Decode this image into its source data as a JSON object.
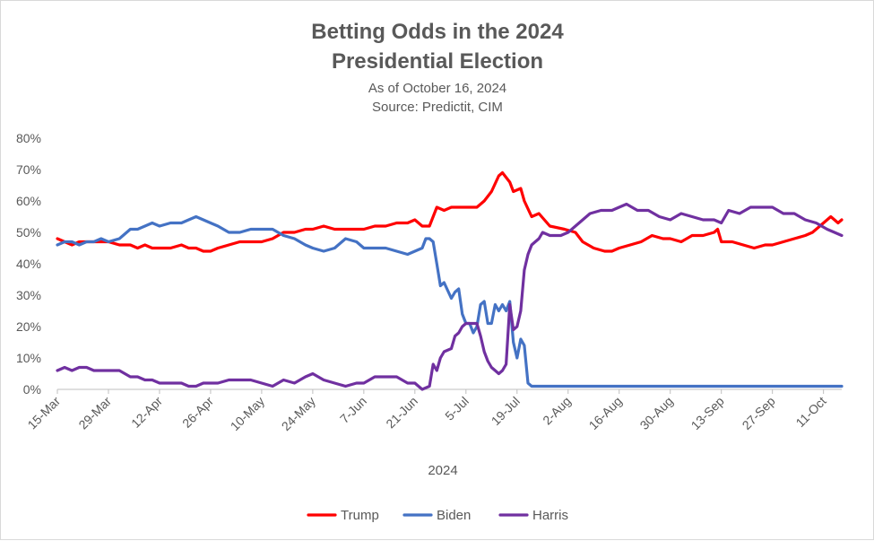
{
  "chart_data": {
    "type": "line",
    "title_lines": [
      "Betting Odds in the 2024",
      "Presidential Election"
    ],
    "subtitle_lines": [
      "As of October 16, 2024",
      "Source: Predictit, CIM"
    ],
    "xlabel": "2024",
    "ylabel": "",
    "ylim": [
      0,
      80
    ],
    "y_ticks": [
      "0%",
      "10%",
      "20%",
      "30%",
      "40%",
      "50%",
      "60%",
      "70%",
      "80%"
    ],
    "x_range": [
      "2024-03-15",
      "2024-10-16"
    ],
    "x_tick_labels": [
      "15-Mar",
      "29-Mar",
      "12-Apr",
      "26-Apr",
      "10-May",
      "24-May",
      "7-Jun",
      "21-Jun",
      "5-Jul",
      "19-Jul",
      "2-Aug",
      "16-Aug",
      "30-Aug",
      "13-Sep",
      "27-Sep",
      "11-Oct"
    ],
    "x_tick_dates": [
      "2024-03-15",
      "2024-03-29",
      "2024-04-12",
      "2024-04-26",
      "2024-05-10",
      "2024-05-24",
      "2024-06-07",
      "2024-06-21",
      "2024-07-05",
      "2024-07-19",
      "2024-08-02",
      "2024-08-16",
      "2024-08-30",
      "2024-09-13",
      "2024-09-27",
      "2024-10-11"
    ],
    "grid": false,
    "legend_position": "bottom",
    "series": [
      {
        "name": "Trump",
        "color": "#FF0000",
        "points": [
          [
            "2024-03-15",
            48
          ],
          [
            "2024-03-17",
            47
          ],
          [
            "2024-03-19",
            46
          ],
          [
            "2024-03-21",
            47
          ],
          [
            "2024-03-23",
            47
          ],
          [
            "2024-03-25",
            47
          ],
          [
            "2024-03-27",
            47
          ],
          [
            "2024-03-29",
            47
          ],
          [
            "2024-04-01",
            46
          ],
          [
            "2024-04-04",
            46
          ],
          [
            "2024-04-06",
            45
          ],
          [
            "2024-04-08",
            46
          ],
          [
            "2024-04-10",
            45
          ],
          [
            "2024-04-12",
            45
          ],
          [
            "2024-04-15",
            45
          ],
          [
            "2024-04-18",
            46
          ],
          [
            "2024-04-20",
            45
          ],
          [
            "2024-04-22",
            45
          ],
          [
            "2024-04-24",
            44
          ],
          [
            "2024-04-26",
            44
          ],
          [
            "2024-04-28",
            45
          ],
          [
            "2024-05-01",
            46
          ],
          [
            "2024-05-04",
            47
          ],
          [
            "2024-05-07",
            47
          ],
          [
            "2024-05-10",
            47
          ],
          [
            "2024-05-13",
            48
          ],
          [
            "2024-05-16",
            50
          ],
          [
            "2024-05-19",
            50
          ],
          [
            "2024-05-22",
            51
          ],
          [
            "2024-05-24",
            51
          ],
          [
            "2024-05-27",
            52
          ],
          [
            "2024-05-30",
            51
          ],
          [
            "2024-06-02",
            51
          ],
          [
            "2024-06-05",
            51
          ],
          [
            "2024-06-07",
            51
          ],
          [
            "2024-06-10",
            52
          ],
          [
            "2024-06-13",
            52
          ],
          [
            "2024-06-16",
            53
          ],
          [
            "2024-06-19",
            53
          ],
          [
            "2024-06-21",
            54
          ],
          [
            "2024-06-23",
            52
          ],
          [
            "2024-06-25",
            52
          ],
          [
            "2024-06-27",
            58
          ],
          [
            "2024-06-29",
            57
          ],
          [
            "2024-07-01",
            58
          ],
          [
            "2024-07-03",
            58
          ],
          [
            "2024-07-05",
            58
          ],
          [
            "2024-07-08",
            58
          ],
          [
            "2024-07-10",
            60
          ],
          [
            "2024-07-12",
            63
          ],
          [
            "2024-07-14",
            68
          ],
          [
            "2024-07-15",
            69
          ],
          [
            "2024-07-17",
            66
          ],
          [
            "2024-07-18",
            63
          ],
          [
            "2024-07-20",
            64
          ],
          [
            "2024-07-21",
            60
          ],
          [
            "2024-07-23",
            55
          ],
          [
            "2024-07-25",
            56
          ],
          [
            "2024-07-28",
            52
          ],
          [
            "2024-08-01",
            51
          ],
          [
            "2024-08-04",
            50
          ],
          [
            "2024-08-06",
            47
          ],
          [
            "2024-08-09",
            45
          ],
          [
            "2024-08-12",
            44
          ],
          [
            "2024-08-14",
            44
          ],
          [
            "2024-08-16",
            45
          ],
          [
            "2024-08-19",
            46
          ],
          [
            "2024-08-22",
            47
          ],
          [
            "2024-08-25",
            49
          ],
          [
            "2024-08-28",
            48
          ],
          [
            "2024-08-30",
            48
          ],
          [
            "2024-09-02",
            47
          ],
          [
            "2024-09-05",
            49
          ],
          [
            "2024-09-08",
            49
          ],
          [
            "2024-09-11",
            50
          ],
          [
            "2024-09-12",
            51
          ],
          [
            "2024-09-13",
            47
          ],
          [
            "2024-09-16",
            47
          ],
          [
            "2024-09-19",
            46
          ],
          [
            "2024-09-22",
            45
          ],
          [
            "2024-09-25",
            46
          ],
          [
            "2024-09-27",
            46
          ],
          [
            "2024-09-30",
            47
          ],
          [
            "2024-10-03",
            48
          ],
          [
            "2024-10-06",
            49
          ],
          [
            "2024-10-08",
            50
          ],
          [
            "2024-10-10",
            52
          ],
          [
            "2024-10-12",
            54
          ],
          [
            "2024-10-13",
            55
          ],
          [
            "2024-10-14",
            54
          ],
          [
            "2024-10-15",
            53
          ],
          [
            "2024-10-16",
            54
          ]
        ]
      },
      {
        "name": "Biden",
        "color": "#4472C4",
        "points": [
          [
            "2024-03-15",
            46
          ],
          [
            "2024-03-17",
            47
          ],
          [
            "2024-03-19",
            47
          ],
          [
            "2024-03-21",
            46
          ],
          [
            "2024-03-23",
            47
          ],
          [
            "2024-03-25",
            47
          ],
          [
            "2024-03-27",
            48
          ],
          [
            "2024-03-29",
            47
          ],
          [
            "2024-04-01",
            48
          ],
          [
            "2024-04-04",
            51
          ],
          [
            "2024-04-06",
            51
          ],
          [
            "2024-04-08",
            52
          ],
          [
            "2024-04-10",
            53
          ],
          [
            "2024-04-12",
            52
          ],
          [
            "2024-04-15",
            53
          ],
          [
            "2024-04-18",
            53
          ],
          [
            "2024-04-20",
            54
          ],
          [
            "2024-04-22",
            55
          ],
          [
            "2024-04-24",
            54
          ],
          [
            "2024-04-26",
            53
          ],
          [
            "2024-04-28",
            52
          ],
          [
            "2024-05-01",
            50
          ],
          [
            "2024-05-04",
            50
          ],
          [
            "2024-05-07",
            51
          ],
          [
            "2024-05-10",
            51
          ],
          [
            "2024-05-13",
            51
          ],
          [
            "2024-05-16",
            49
          ],
          [
            "2024-05-19",
            48
          ],
          [
            "2024-05-22",
            46
          ],
          [
            "2024-05-24",
            45
          ],
          [
            "2024-05-27",
            44
          ],
          [
            "2024-05-30",
            45
          ],
          [
            "2024-06-02",
            48
          ],
          [
            "2024-06-05",
            47
          ],
          [
            "2024-06-07",
            45
          ],
          [
            "2024-06-10",
            45
          ],
          [
            "2024-06-13",
            45
          ],
          [
            "2024-06-16",
            44
          ],
          [
            "2024-06-19",
            43
          ],
          [
            "2024-06-21",
            44
          ],
          [
            "2024-06-23",
            45
          ],
          [
            "2024-06-24",
            48
          ],
          [
            "2024-06-25",
            48
          ],
          [
            "2024-06-26",
            47
          ],
          [
            "2024-06-27",
            40
          ],
          [
            "2024-06-28",
            33
          ],
          [
            "2024-06-29",
            34
          ],
          [
            "2024-07-01",
            29
          ],
          [
            "2024-07-02",
            31
          ],
          [
            "2024-07-03",
            32
          ],
          [
            "2024-07-04",
            24
          ],
          [
            "2024-07-05",
            21
          ],
          [
            "2024-07-06",
            21
          ],
          [
            "2024-07-07",
            18
          ],
          [
            "2024-07-08",
            20
          ],
          [
            "2024-07-09",
            27
          ],
          [
            "2024-07-10",
            28
          ],
          [
            "2024-07-11",
            21
          ],
          [
            "2024-07-12",
            21
          ],
          [
            "2024-07-13",
            27
          ],
          [
            "2024-07-14",
            25
          ],
          [
            "2024-07-15",
            27
          ],
          [
            "2024-07-16",
            25
          ],
          [
            "2024-07-17",
            28
          ],
          [
            "2024-07-18",
            15
          ],
          [
            "2024-07-19",
            10
          ],
          [
            "2024-07-20",
            16
          ],
          [
            "2024-07-21",
            14
          ],
          [
            "2024-07-22",
            2
          ],
          [
            "2024-07-23",
            1
          ],
          [
            "2024-07-25",
            1
          ],
          [
            "2024-10-16",
            1
          ]
        ]
      },
      {
        "name": "Harris",
        "color": "#7030A0",
        "points": [
          [
            "2024-03-15",
            6
          ],
          [
            "2024-03-17",
            7
          ],
          [
            "2024-03-19",
            6
          ],
          [
            "2024-03-21",
            7
          ],
          [
            "2024-03-23",
            7
          ],
          [
            "2024-03-25",
            6
          ],
          [
            "2024-03-27",
            6
          ],
          [
            "2024-03-29",
            6
          ],
          [
            "2024-04-01",
            6
          ],
          [
            "2024-04-04",
            4
          ],
          [
            "2024-04-06",
            4
          ],
          [
            "2024-04-08",
            3
          ],
          [
            "2024-04-10",
            3
          ],
          [
            "2024-04-12",
            2
          ],
          [
            "2024-04-15",
            2
          ],
          [
            "2024-04-18",
            2
          ],
          [
            "2024-04-20",
            1
          ],
          [
            "2024-04-22",
            1
          ],
          [
            "2024-04-24",
            2
          ],
          [
            "2024-04-26",
            2
          ],
          [
            "2024-04-28",
            2
          ],
          [
            "2024-05-01",
            3
          ],
          [
            "2024-05-04",
            3
          ],
          [
            "2024-05-07",
            3
          ],
          [
            "2024-05-10",
            2
          ],
          [
            "2024-05-13",
            1
          ],
          [
            "2024-05-16",
            3
          ],
          [
            "2024-05-19",
            2
          ],
          [
            "2024-05-22",
            4
          ],
          [
            "2024-05-24",
            5
          ],
          [
            "2024-05-27",
            3
          ],
          [
            "2024-05-30",
            2
          ],
          [
            "2024-06-02",
            1
          ],
          [
            "2024-06-05",
            2
          ],
          [
            "2024-06-07",
            2
          ],
          [
            "2024-06-10",
            4
          ],
          [
            "2024-06-13",
            4
          ],
          [
            "2024-06-16",
            4
          ],
          [
            "2024-06-19",
            2
          ],
          [
            "2024-06-21",
            2
          ],
          [
            "2024-06-23",
            0
          ],
          [
            "2024-06-25",
            1
          ],
          [
            "2024-06-26",
            8
          ],
          [
            "2024-06-27",
            6
          ],
          [
            "2024-06-28",
            10
          ],
          [
            "2024-06-29",
            12
          ],
          [
            "2024-07-01",
            13
          ],
          [
            "2024-07-02",
            17
          ],
          [
            "2024-07-03",
            18
          ],
          [
            "2024-07-04",
            20
          ],
          [
            "2024-07-05",
            21
          ],
          [
            "2024-07-06",
            21
          ],
          [
            "2024-07-07",
            21
          ],
          [
            "2024-07-08",
            21
          ],
          [
            "2024-07-09",
            17
          ],
          [
            "2024-07-10",
            12
          ],
          [
            "2024-07-11",
            9
          ],
          [
            "2024-07-12",
            7
          ],
          [
            "2024-07-13",
            6
          ],
          [
            "2024-07-14",
            5
          ],
          [
            "2024-07-15",
            6
          ],
          [
            "2024-07-16",
            8
          ],
          [
            "2024-07-17",
            27
          ],
          [
            "2024-07-18",
            19
          ],
          [
            "2024-07-19",
            20
          ],
          [
            "2024-07-20",
            25
          ],
          [
            "2024-07-21",
            38
          ],
          [
            "2024-07-22",
            43
          ],
          [
            "2024-07-23",
            46
          ],
          [
            "2024-07-24",
            47
          ],
          [
            "2024-07-25",
            48
          ],
          [
            "2024-07-26",
            50
          ],
          [
            "2024-07-28",
            49
          ],
          [
            "2024-07-31",
            49
          ],
          [
            "2024-08-02",
            50
          ],
          [
            "2024-08-05",
            53
          ],
          [
            "2024-08-08",
            56
          ],
          [
            "2024-08-11",
            57
          ],
          [
            "2024-08-14",
            57
          ],
          [
            "2024-08-16",
            58
          ],
          [
            "2024-08-18",
            59
          ],
          [
            "2024-08-21",
            57
          ],
          [
            "2024-08-24",
            57
          ],
          [
            "2024-08-27",
            55
          ],
          [
            "2024-08-30",
            54
          ],
          [
            "2024-09-02",
            56
          ],
          [
            "2024-09-05",
            55
          ],
          [
            "2024-09-08",
            54
          ],
          [
            "2024-09-11",
            54
          ],
          [
            "2024-09-13",
            53
          ],
          [
            "2024-09-15",
            57
          ],
          [
            "2024-09-18",
            56
          ],
          [
            "2024-09-21",
            58
          ],
          [
            "2024-09-24",
            58
          ],
          [
            "2024-09-27",
            58
          ],
          [
            "2024-09-30",
            56
          ],
          [
            "2024-10-03",
            56
          ],
          [
            "2024-10-06",
            54
          ],
          [
            "2024-10-09",
            53
          ],
          [
            "2024-10-12",
            51
          ],
          [
            "2024-10-14",
            50
          ],
          [
            "2024-10-16",
            49
          ]
        ]
      }
    ]
  }
}
